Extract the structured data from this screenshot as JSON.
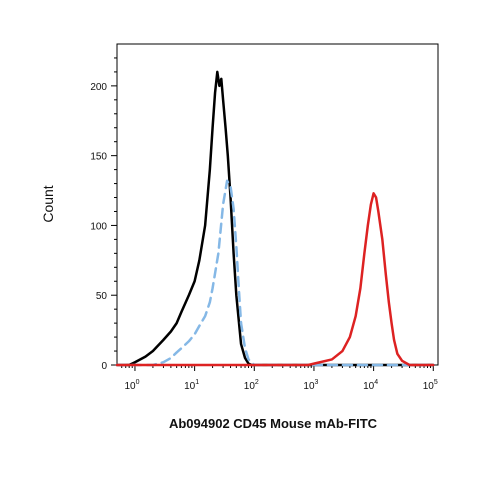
{
  "chart_data": {
    "type": "line",
    "title": "",
    "caption": "Ab094902 CD45 Mouse mAb-FITC",
    "xlabel": "",
    "ylabel": "Count",
    "xscale": "log",
    "xlim": [
      0.5,
      120000
    ],
    "ylim": [
      0,
      230
    ],
    "x_ticks": [
      {
        "base": "10",
        "exp": "0",
        "value": 1
      },
      {
        "base": "10",
        "exp": "1",
        "value": 10
      },
      {
        "base": "10",
        "exp": "2",
        "value": 100
      },
      {
        "base": "10",
        "exp": "3",
        "value": 1000
      },
      {
        "base": "10",
        "exp": "4",
        "value": 10000
      },
      {
        "base": "10",
        "exp": "5",
        "value": 100000
      }
    ],
    "y_ticks": [
      {
        "label": "0",
        "value": 0
      },
      {
        "label": "50",
        "value": 50
      },
      {
        "label": "100",
        "value": 100
      },
      {
        "label": "150",
        "value": 150
      },
      {
        "label": "200",
        "value": 200
      }
    ],
    "grid": false,
    "legend": "none",
    "series": [
      {
        "color": "#000000",
        "style": "solid",
        "x": [
          0.5,
          0.8,
          1,
          1.5,
          2,
          3,
          4,
          5,
          6,
          8,
          10,
          12,
          15,
          18,
          20,
          22,
          24,
          26,
          28,
          30,
          33,
          36,
          40,
          45,
          50,
          60,
          70,
          80,
          90,
          100,
          1000,
          100000
        ],
        "y": [
          0,
          0,
          2,
          6,
          10,
          18,
          24,
          30,
          38,
          50,
          60,
          75,
          100,
          140,
          170,
          195,
          210,
          200,
          205,
          190,
          170,
          150,
          120,
          80,
          50,
          15,
          5,
          1,
          0,
          0,
          0,
          0
        ]
      },
      {
        "color": "#85b8e6",
        "style": "dashed",
        "x": [
          0.5,
          2,
          3,
          4,
          5,
          6,
          8,
          10,
          12,
          15,
          18,
          20,
          25,
          30,
          35,
          40,
          45,
          50,
          55,
          60,
          70,
          80,
          100,
          150,
          200,
          100000
        ],
        "y": [
          0,
          0,
          2,
          5,
          9,
          12,
          17,
          22,
          28,
          35,
          45,
          55,
          80,
          115,
          132,
          128,
          112,
          85,
          55,
          30,
          12,
          4,
          0,
          0,
          0,
          0
        ]
      },
      {
        "color": "#dd2222",
        "style": "solid",
        "x": [
          0.5,
          800,
          1000,
          2000,
          3000,
          4000,
          5000,
          6000,
          7000,
          8000,
          9000,
          10000,
          11000,
          12000,
          14000,
          16000,
          18000,
          20000,
          22000,
          25000,
          30000,
          40000,
          100000
        ],
        "y": [
          0,
          0,
          1,
          4,
          10,
          20,
          35,
          55,
          80,
          100,
          115,
          123,
          120,
          110,
          90,
          65,
          45,
          30,
          18,
          8,
          3,
          0,
          0
        ]
      }
    ]
  }
}
